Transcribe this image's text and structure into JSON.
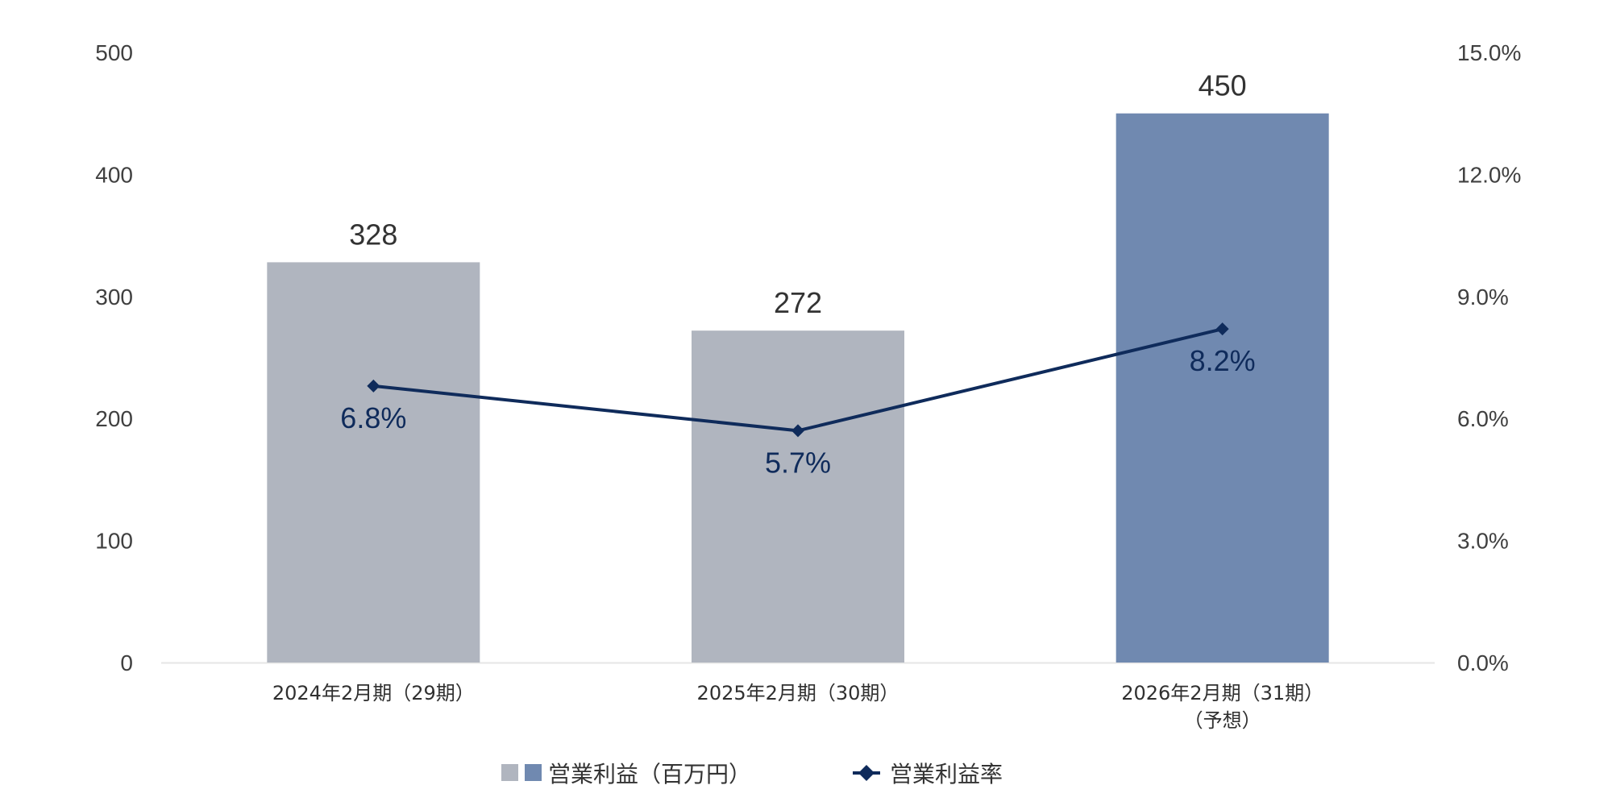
{
  "colors": {
    "bar_actual": "#B0B5BF",
    "bar_forecast": "#7089B0",
    "line": "#0F2B5B",
    "axis": "#E6E6E6",
    "tick_text": "#404040",
    "value_text": "#333333"
  },
  "chart_data": {
    "type": "bar",
    "categories": [
      [
        "2024年2月期（29期）"
      ],
      [
        "2025年2月期（30期）"
      ],
      [
        "2026年2月期（31期）",
        "（予想）"
      ]
    ],
    "series": [
      {
        "name": "営業利益（百万円）",
        "type": "bar",
        "axis": "left",
        "values": [
          328,
          272,
          450
        ],
        "labels": [
          "328",
          "272",
          "450"
        ],
        "colors": [
          "#B0B5BF",
          "#B0B5BF",
          "#7089B0"
        ]
      },
      {
        "name": "営業利益率",
        "type": "line",
        "axis": "right",
        "marker": "diamond",
        "values": [
          6.8,
          5.7,
          8.2
        ],
        "labels": [
          "6.8%",
          "5.7%",
          "8.2%"
        ],
        "color": "#0F2B5B"
      }
    ],
    "y_left": {
      "range": [
        0,
        500
      ],
      "ticks": [
        0,
        100,
        200,
        300,
        400,
        500
      ],
      "tick_labels": [
        "0",
        "100",
        "200",
        "300",
        "400",
        "500"
      ]
    },
    "y_right": {
      "range": [
        0,
        15
      ],
      "ticks": [
        0,
        3,
        6,
        9,
        12,
        15
      ],
      "tick_labels": [
        "0.0%",
        "3.0%",
        "6.0%",
        "9.0%",
        "12.0%",
        "15.0%"
      ]
    },
    "grid": false,
    "legend": {
      "position": "bottom",
      "items": [
        {
          "label": "営業利益（百万円）",
          "symbol": "bar-pair",
          "colors": [
            "#B0B5BF",
            "#7089B0"
          ]
        },
        {
          "label": "営業利益率",
          "symbol": "line-diamond",
          "color": "#0F2B5B"
        }
      ]
    }
  }
}
